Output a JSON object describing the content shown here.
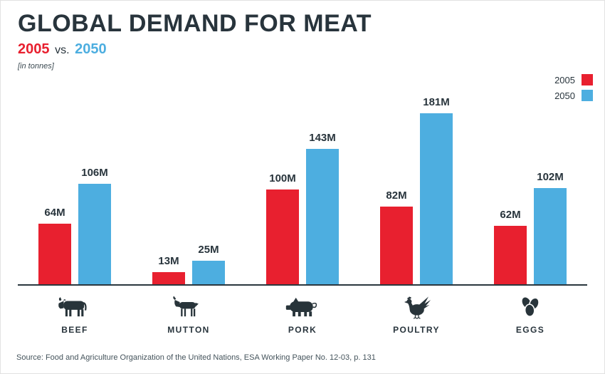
{
  "header": {
    "title": "GLOBAL DEMAND FOR MEAT",
    "subtitle_year_a": "2005",
    "subtitle_vs": "vs.",
    "subtitle_year_b": "2050",
    "unit_note": "[in tonnes]"
  },
  "chart_data": {
    "type": "bar",
    "title": "GLOBAL DEMAND FOR MEAT",
    "subtitle": "2005 vs. 2050",
    "unit_note": "in tonnes",
    "categories": [
      "BEEF",
      "MUTTON",
      "PORK",
      "POULTRY",
      "EGGS"
    ],
    "category_icons": [
      "cow-icon",
      "sheep-icon",
      "pig-icon",
      "chicken-icon",
      "eggs-icon"
    ],
    "series": [
      {
        "name": "2005",
        "color": "#e8202f",
        "values": [
          64,
          13,
          100,
          82,
          62
        ]
      },
      {
        "name": "2050",
        "color": "#4daee0",
        "values": [
          106,
          25,
          143,
          181,
          102
        ]
      }
    ],
    "value_suffix": "M",
    "ylim": [
      0,
      190
    ],
    "grid": false,
    "legend_position": "top-right"
  },
  "footer": {
    "source": "Source: Food and Agriculture Organization of the United Nations, ESA Working Paper No. 12-03, p. 131"
  },
  "colors": {
    "accent_red": "#e8202f",
    "accent_blue": "#4daee0",
    "ink": "#28343c"
  }
}
